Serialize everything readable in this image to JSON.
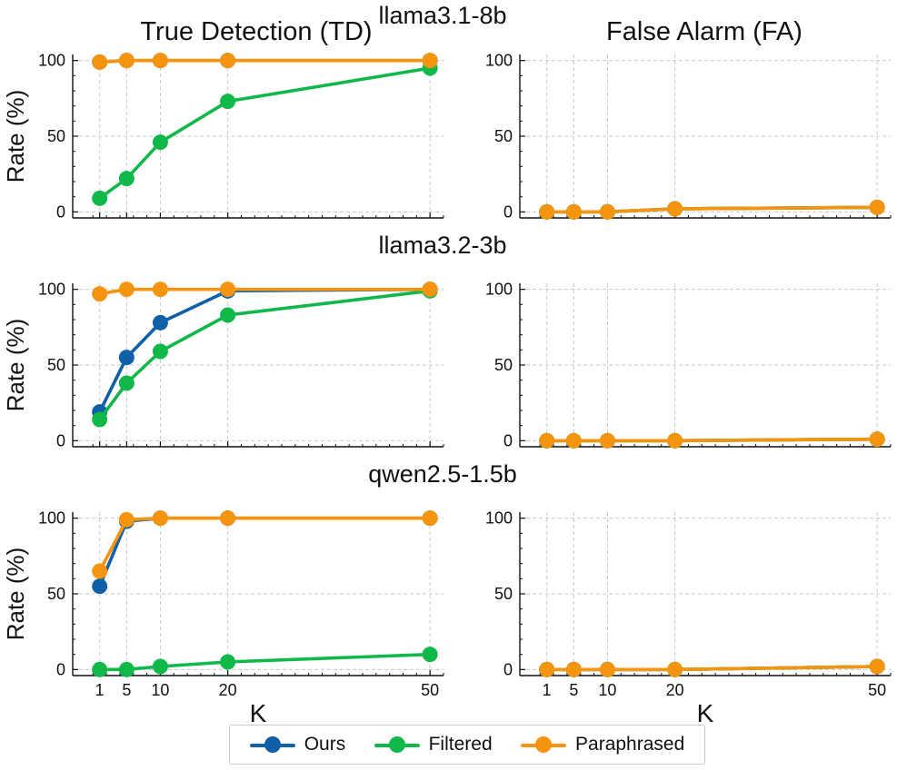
{
  "colors": {
    "Ours": "#1060a8",
    "Filtered": "#10b84a",
    "Paraphrased": "#f5950f"
  },
  "column_titles": [
    "True Detection (TD)",
    "False Alarm (FA)"
  ],
  "legend": [
    "Ours",
    "Filtered",
    "Paraphrased"
  ],
  "chart_data": [
    {
      "type": "line",
      "model": "llama3.1-8b",
      "title": "True Detection (TD)",
      "xlabel": "",
      "ylabel": "Rate (%)",
      "x": [
        1,
        5,
        10,
        20,
        50
      ],
      "xlim": [
        -3,
        52
      ],
      "ylim": [
        -4,
        104
      ],
      "yticks": [
        0,
        50,
        100
      ],
      "xticks": [],
      "grid": true,
      "series": [
        {
          "name": "Ours",
          "values": [
            99,
            100,
            100,
            100,
            100
          ]
        },
        {
          "name": "Filtered",
          "values": [
            9,
            22,
            46,
            73,
            95
          ]
        },
        {
          "name": "Paraphrased",
          "values": [
            99,
            100,
            100,
            100,
            100
          ]
        }
      ]
    },
    {
      "type": "line",
      "model": "llama3.1-8b",
      "title": "False Alarm (FA)",
      "xlabel": "",
      "ylabel": "",
      "x": [
        1,
        5,
        10,
        20,
        50
      ],
      "xlim": [
        -3,
        52
      ],
      "ylim": [
        -4,
        104
      ],
      "yticks": [
        0,
        50,
        100
      ],
      "xticks": [],
      "grid": true,
      "series": [
        {
          "name": "Ours",
          "values": [
            0,
            0,
            0,
            2,
            3
          ]
        },
        {
          "name": "Filtered",
          "values": [
            0,
            0,
            0,
            2,
            3
          ]
        },
        {
          "name": "Paraphrased",
          "values": [
            0,
            0,
            0,
            2,
            3
          ]
        }
      ]
    },
    {
      "type": "line",
      "model": "llama3.2-3b",
      "title": "",
      "xlabel": "",
      "ylabel": "Rate (%)",
      "x": [
        1,
        5,
        10,
        20,
        50
      ],
      "xlim": [
        -3,
        52
      ],
      "ylim": [
        -4,
        104
      ],
      "yticks": [
        0,
        50,
        100
      ],
      "xticks": [],
      "grid": true,
      "series": [
        {
          "name": "Ours",
          "values": [
            19,
            55,
            78,
            99,
            100
          ]
        },
        {
          "name": "Filtered",
          "values": [
            14,
            38,
            59,
            83,
            99
          ]
        },
        {
          "name": "Paraphrased",
          "values": [
            97,
            100,
            100,
            100,
            100
          ]
        }
      ]
    },
    {
      "type": "line",
      "model": "llama3.2-3b",
      "title": "",
      "xlabel": "",
      "ylabel": "",
      "x": [
        1,
        5,
        10,
        20,
        50
      ],
      "xlim": [
        -3,
        52
      ],
      "ylim": [
        -4,
        104
      ],
      "yticks": [
        0,
        50,
        100
      ],
      "xticks": [],
      "grid": true,
      "series": [
        {
          "name": "Ours",
          "values": [
            0,
            0,
            0,
            0,
            1
          ]
        },
        {
          "name": "Filtered",
          "values": [
            0,
            0,
            0,
            0,
            1
          ]
        },
        {
          "name": "Paraphrased",
          "values": [
            0,
            0,
            0,
            0,
            1
          ]
        }
      ]
    },
    {
      "type": "line",
      "model": "qwen2.5-1.5b",
      "title": "",
      "xlabel": "K",
      "ylabel": "Rate (%)",
      "x": [
        1,
        5,
        10,
        20,
        50
      ],
      "xlim": [
        -3,
        52
      ],
      "ylim": [
        -4,
        104
      ],
      "yticks": [
        0,
        50,
        100
      ],
      "xticks": [
        1,
        5,
        10,
        20,
        50
      ],
      "grid": true,
      "series": [
        {
          "name": "Ours",
          "values": [
            55,
            98,
            100,
            100,
            100
          ]
        },
        {
          "name": "Filtered",
          "values": [
            0,
            0,
            2,
            5,
            10
          ]
        },
        {
          "name": "Paraphrased",
          "values": [
            65,
            99,
            100,
            100,
            100
          ]
        }
      ]
    },
    {
      "type": "line",
      "model": "qwen2.5-1.5b",
      "title": "",
      "xlabel": "K",
      "ylabel": "",
      "x": [
        1,
        5,
        10,
        20,
        50
      ],
      "xlim": [
        -3,
        52
      ],
      "ylim": [
        -4,
        104
      ],
      "yticks": [
        0,
        50,
        100
      ],
      "xticks": [
        1,
        5,
        10,
        20,
        50
      ],
      "grid": true,
      "series": [
        {
          "name": "Ours",
          "values": [
            0,
            0,
            0,
            0,
            2
          ]
        },
        {
          "name": "Filtered",
          "values": [
            0,
            0,
            0,
            0,
            2
          ]
        },
        {
          "name": "Paraphrased",
          "values": [
            0,
            0,
            0,
            0,
            2
          ]
        }
      ]
    }
  ]
}
